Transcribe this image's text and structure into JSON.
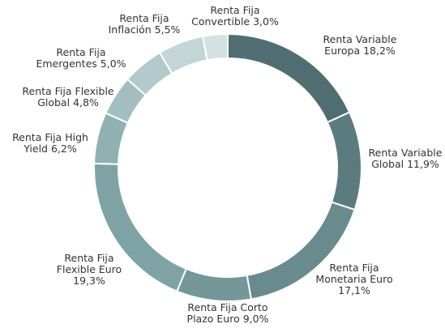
{
  "chart_data": {
    "type": "donut",
    "categories": [
      "Renta Variable Europa",
      "Renta Variable Global",
      "Renta Fija Monetaria Euro",
      "Renta Fija Corto Plazo Euro",
      "Renta Fija Flexible Euro",
      "Renta Fija High Yield",
      "Renta Fija Flexible Global",
      "Renta Fija Emergentes",
      "Renta Fija Inflación",
      "Renta Fija Convertible"
    ],
    "values": [
      18.2,
      11.9,
      17.1,
      9.0,
      19.3,
      6.2,
      4.8,
      5.0,
      5.5,
      3.0
    ],
    "value_labels": [
      "18,2%",
      "11,9%",
      "17,1%",
      "9,0%",
      "19,3%",
      "6,2%",
      "4,8%",
      "5,0%",
      "5,5%",
      "3,0%"
    ],
    "colors": [
      "#506e71",
      "#5b7b7e",
      "#6a8b8d",
      "#76979a",
      "#7fa3a5",
      "#90b0b2",
      "#a3bec0",
      "#b3c9cb",
      "#c3d5d7",
      "#d4e1e2"
    ]
  }
}
